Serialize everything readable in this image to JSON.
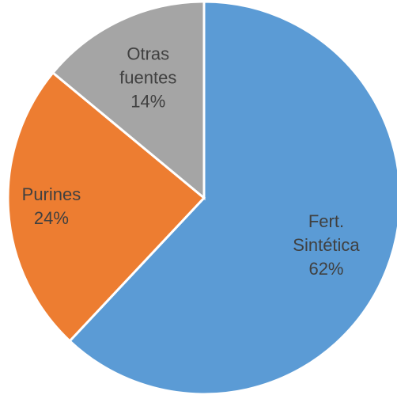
{
  "chart_data": {
    "type": "pie",
    "categories": [
      "Fert. Sintética",
      "Purines",
      "Otras fuentes"
    ],
    "values": [
      62,
      24,
      14
    ],
    "value_labels": [
      "62%",
      "24%",
      "14%"
    ],
    "colors": [
      "#5b9bd5",
      "#ed7d31",
      "#a5a5a5"
    ]
  }
}
